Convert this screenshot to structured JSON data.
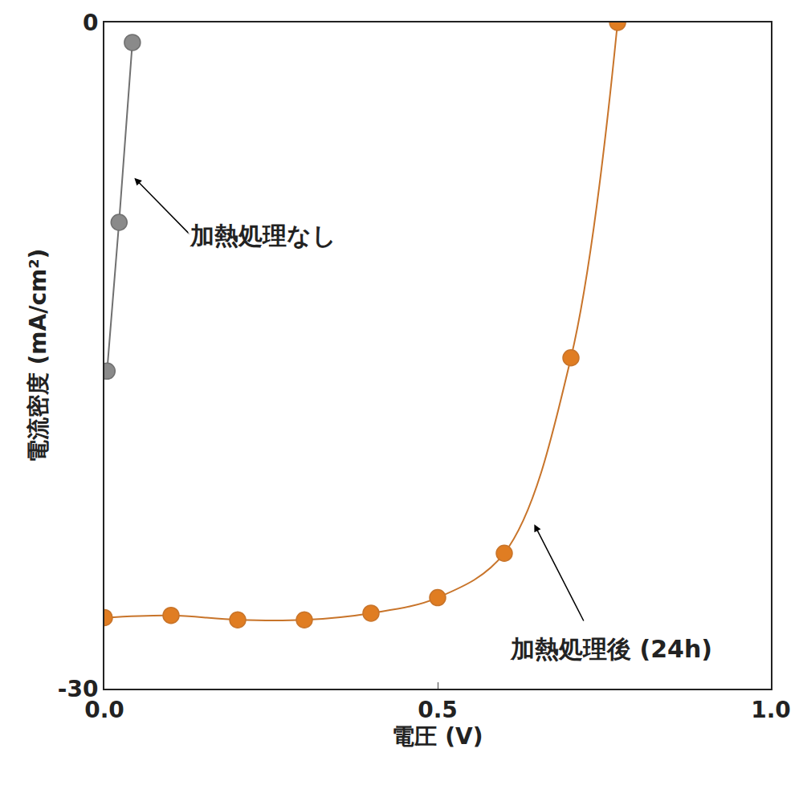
{
  "chart_data": {
    "type": "line",
    "x_label": "電圧 (V)",
    "y_label": "電流密度 (mA/cm²)",
    "xlim": [
      0,
      1
    ],
    "ylim": [
      -30,
      0
    ],
    "xticks": [
      {
        "value": 0,
        "label": "0.0"
      },
      {
        "value": 0.5,
        "label": "0.5"
      },
      {
        "value": 1,
        "label": "1.0"
      }
    ],
    "yticks": [
      -30,
      0
    ],
    "grid": false,
    "series": [
      {
        "name": "加熱処理なし",
        "color": "#8a8a8a",
        "marker": "circle",
        "line_style": "solid",
        "x": [
          0.004,
          0.022,
          0.042
        ],
        "values": [
          -15.7,
          -9.0,
          -0.9
        ]
      },
      {
        "name": "加熱処理後 (24h)",
        "color": "#e07d22",
        "marker": "circle",
        "line_style": "solid",
        "x": [
          0,
          0.1,
          0.2,
          0.3,
          0.4,
          0.5,
          0.6,
          0.7,
          0.77
        ],
        "values": [
          -26.8,
          -26.7,
          -26.9,
          -26.9,
          -26.6,
          -25.9,
          -23.9,
          -15.1,
          0
        ]
      }
    ]
  }
}
